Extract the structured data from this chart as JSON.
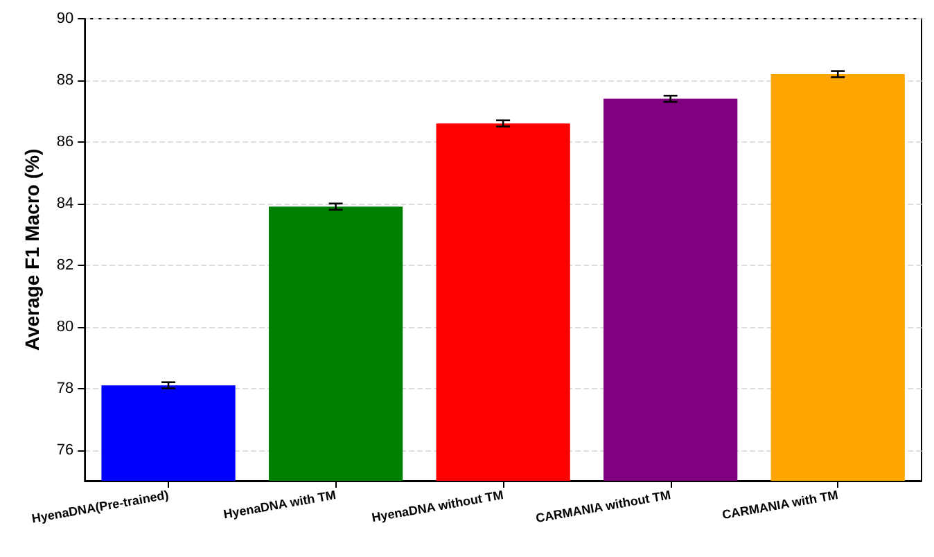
{
  "chart_data": {
    "type": "bar",
    "ylabel": "Average F1 Macro (%)",
    "categories": [
      "HyenaDNA(Pre-trained)",
      "HyenaDNA with TM",
      "HyenaDNA without TM",
      "CARMANIA without TM",
      "CARMANIA with TM"
    ],
    "values": [
      78.1,
      83.9,
      86.6,
      87.4,
      88.2
    ],
    "colors": [
      "#0000ff",
      "#008000",
      "#ff0000",
      "#800080",
      "#ffa500"
    ],
    "errors": [
      0.1,
      0.1,
      0.1,
      0.1,
      0.1
    ],
    "ylim": [
      75,
      90
    ],
    "yticks": [
      76,
      78,
      80,
      82,
      84,
      86,
      88,
      90
    ],
    "grid": "y"
  }
}
